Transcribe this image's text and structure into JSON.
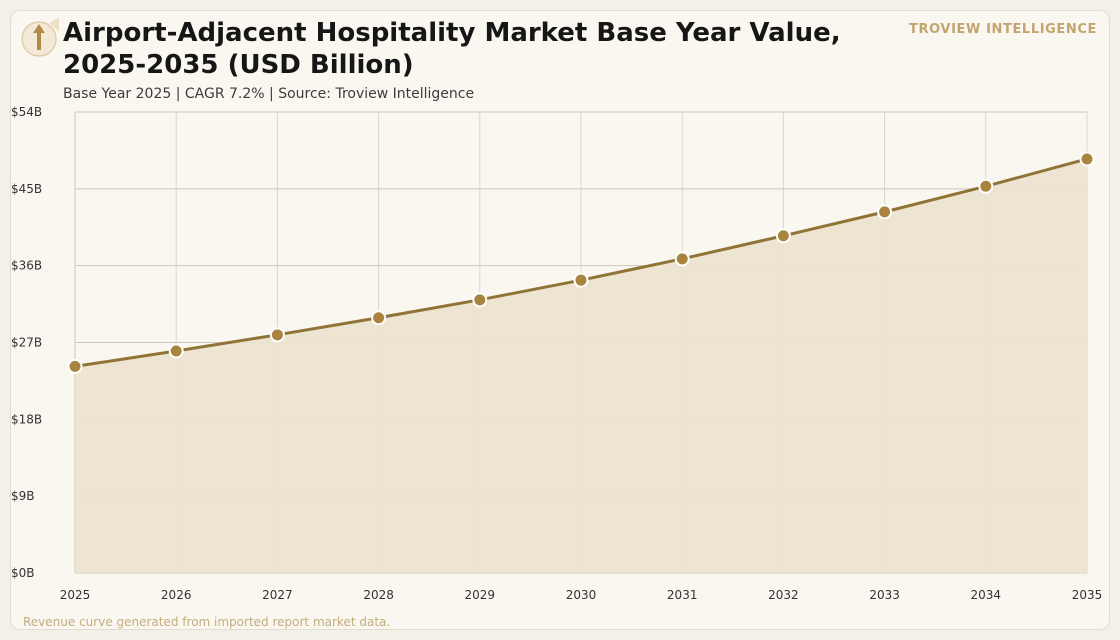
{
  "header": {
    "title": "Airport-Adjacent Hospitality Market Base Year Value, 2025-2035 (USD Billion)",
    "subtitle": "Base Year 2025 | CAGR 7.2% | Source: Troview Intelligence",
    "brand": "TROVIEW INTELLIGENCE",
    "logo_icon": "airplane-takeoff-icon"
  },
  "footer": {
    "note": "Revenue curve generated from imported report market data."
  },
  "colors": {
    "line": "#8f7436",
    "marker": "#a9843e",
    "area": "#ede3d0",
    "grid": "#cfc6b8",
    "brand": "#c2a56e"
  },
  "chart_data": {
    "type": "area",
    "title": "Airport-Adjacent Hospitality Market Base Year Value, 2025-2035 (USD Billion)",
    "x": [
      2025,
      2026,
      2027,
      2028,
      2029,
      2030,
      2031,
      2032,
      2033,
      2034,
      2035
    ],
    "series": [
      {
        "values": [
          24.2,
          26.0,
          27.9,
          29.9,
          32.0,
          34.3,
          36.8,
          39.5,
          42.3,
          45.3,
          48.5
        ]
      }
    ],
    "xlabel": "",
    "ylabel": "",
    "ylim": [
      0,
      54
    ],
    "yticks": [
      0,
      9,
      18,
      27,
      36,
      45,
      54
    ],
    "ytick_labels": [
      "$0B",
      "$9B",
      "$18B",
      "$27B",
      "$36B",
      "$45B",
      "$54B"
    ],
    "xtick_labels": [
      "2025",
      "2026",
      "2027",
      "2028",
      "2029",
      "2030",
      "2031",
      "2032",
      "2033",
      "2034",
      "2035"
    ],
    "grid": true,
    "legend": "none",
    "markers": true
  }
}
